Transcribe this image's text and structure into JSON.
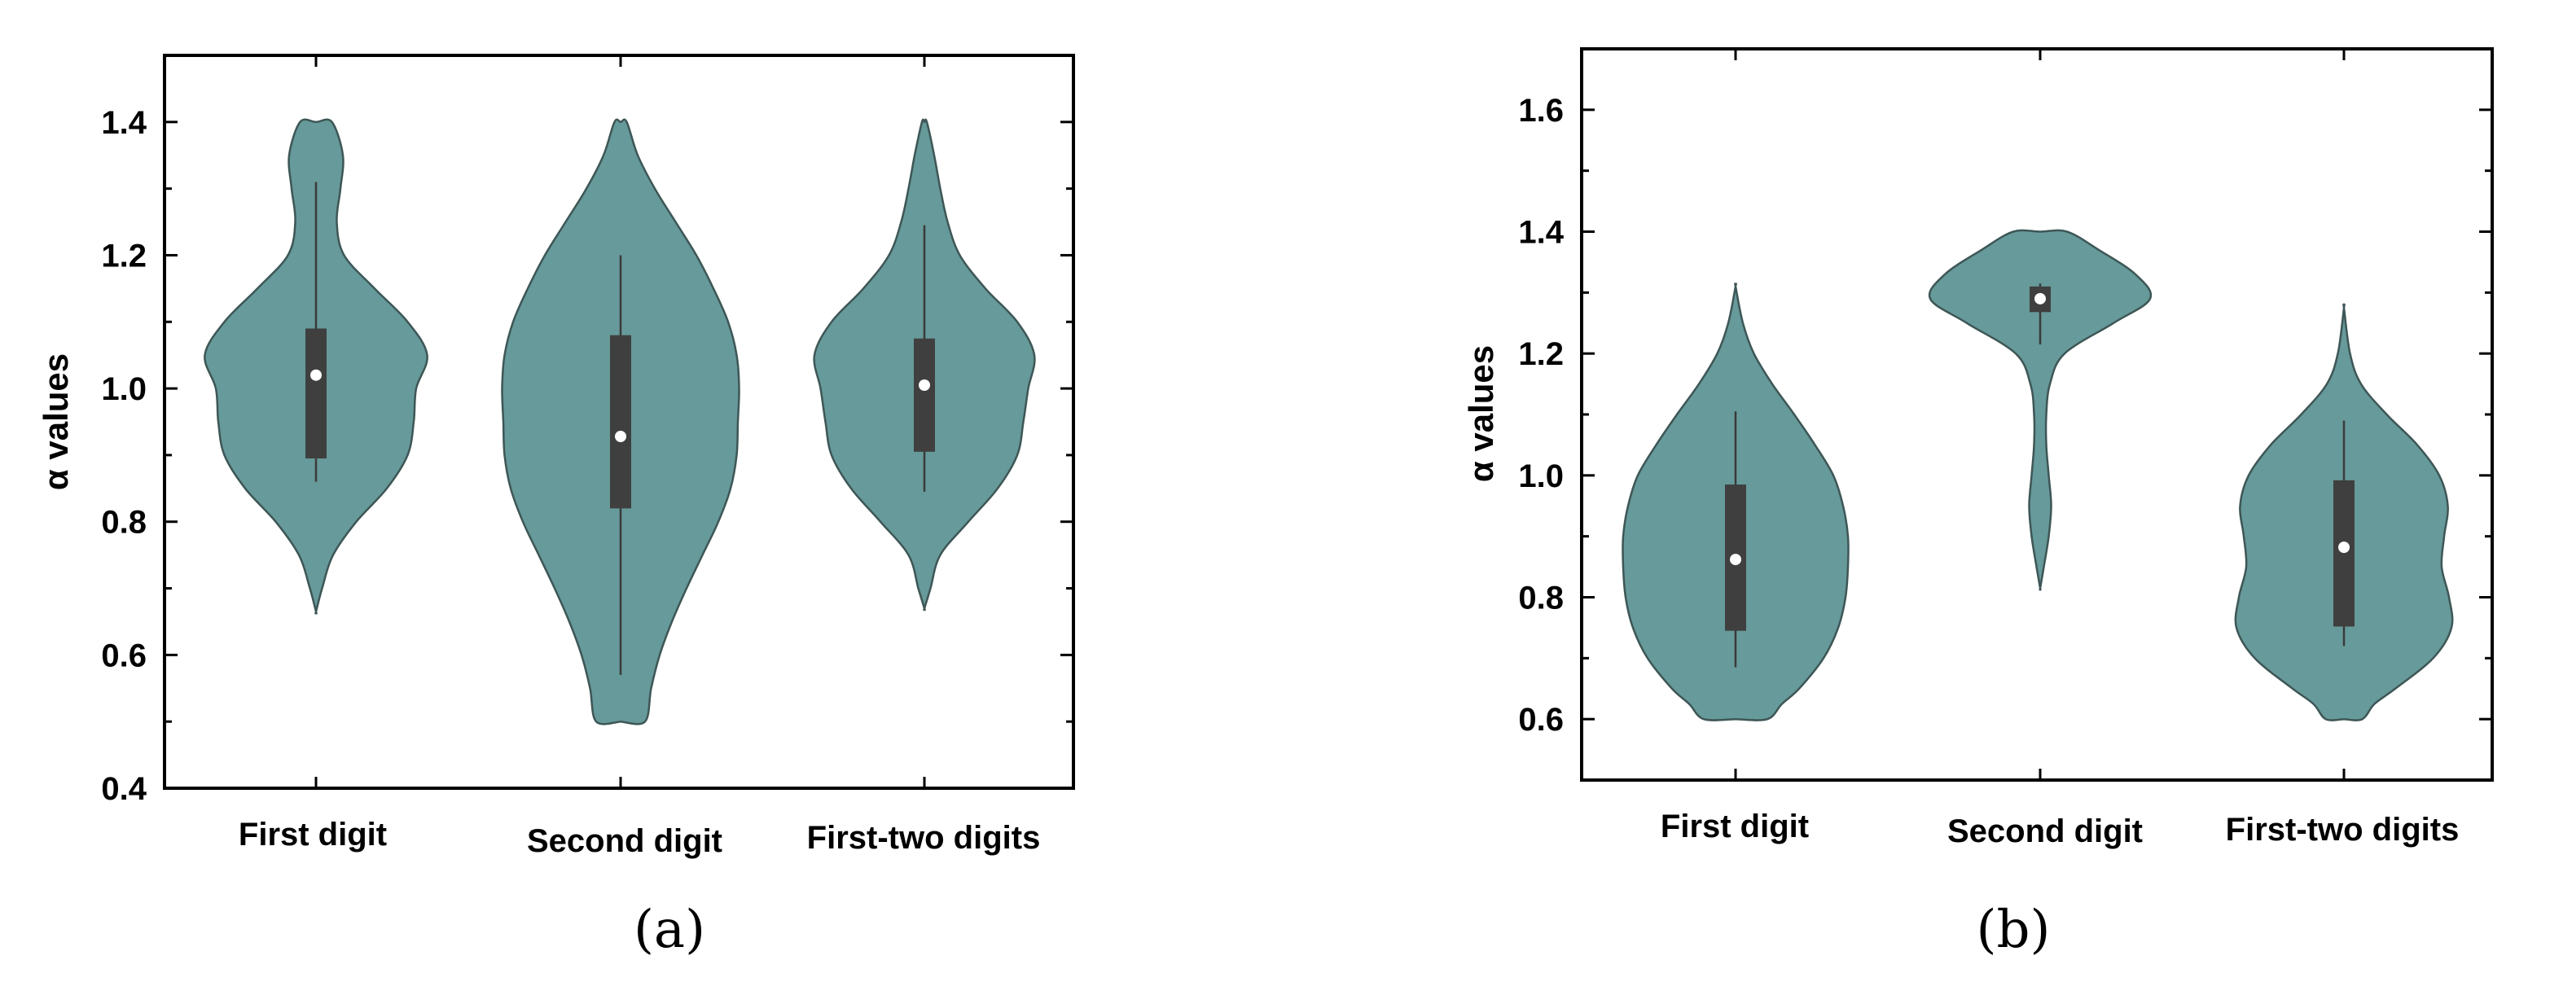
{
  "figure": {
    "violin_color": "#679a9a",
    "box_color": "#3f3f3f",
    "median_color": "#ffffff"
  },
  "chart_data": [
    {
      "type": "violin",
      "panel_label": "(a)",
      "title": "",
      "xlabel": "",
      "ylabel": "α values",
      "ylim": [
        0.4,
        1.5
      ],
      "yticks": [
        0.4,
        0.6,
        0.8,
        1.0,
        1.2,
        1.4
      ],
      "ytick_labels": [
        "0.4",
        "0.6",
        "0.8",
        "1.0",
        "1.2",
        "1.4"
      ],
      "categories": [
        "First digit",
        "Second digit",
        "First-two digits"
      ],
      "violins": [
        {
          "min": 0.665,
          "max": 1.4,
          "whisker_low": 0.86,
          "whisker_high": 1.31,
          "q1": 0.895,
          "q3": 1.09,
          "median": 1.02,
          "profile": [
            [
              0.665,
              0.0
            ],
            [
              0.7,
              0.05
            ],
            [
              0.75,
              0.14
            ],
            [
              0.8,
              0.33
            ],
            [
              0.85,
              0.58
            ],
            [
              0.9,
              0.75
            ],
            [
              0.95,
              0.8
            ],
            [
              1.0,
              0.82
            ],
            [
              1.05,
              0.91
            ],
            [
              1.1,
              0.75
            ],
            [
              1.15,
              0.48
            ],
            [
              1.2,
              0.23
            ],
            [
              1.25,
              0.17
            ],
            [
              1.3,
              0.2
            ],
            [
              1.35,
              0.22
            ],
            [
              1.4,
              0.13
            ]
          ]
        },
        {
          "min": 0.5,
          "max": 1.4,
          "whisker_low": 0.57,
          "whisker_high": 1.2,
          "q1": 0.82,
          "q3": 1.08,
          "median": 0.928,
          "profile": [
            [
              0.5,
              0.2
            ],
            [
              0.55,
              0.25
            ],
            [
              0.6,
              0.32
            ],
            [
              0.65,
              0.42
            ],
            [
              0.7,
              0.54
            ],
            [
              0.75,
              0.67
            ],
            [
              0.8,
              0.8
            ],
            [
              0.85,
              0.9
            ],
            [
              0.9,
              0.95
            ],
            [
              0.95,
              0.96
            ],
            [
              1.0,
              0.97
            ],
            [
              1.05,
              0.95
            ],
            [
              1.1,
              0.88
            ],
            [
              1.15,
              0.76
            ],
            [
              1.2,
              0.62
            ],
            [
              1.25,
              0.45
            ],
            [
              1.3,
              0.28
            ],
            [
              1.35,
              0.14
            ],
            [
              1.4,
              0.05
            ]
          ]
        },
        {
          "min": 0.67,
          "max": 1.4,
          "whisker_low": 0.845,
          "whisker_high": 1.245,
          "q1": 0.905,
          "q3": 1.075,
          "median": 1.005,
          "profile": [
            [
              0.67,
              0.0
            ],
            [
              0.7,
              0.05
            ],
            [
              0.75,
              0.13
            ],
            [
              0.8,
              0.36
            ],
            [
              0.85,
              0.6
            ],
            [
              0.9,
              0.76
            ],
            [
              0.95,
              0.81
            ],
            [
              1.0,
              0.85
            ],
            [
              1.05,
              0.9
            ],
            [
              1.1,
              0.76
            ],
            [
              1.15,
              0.5
            ],
            [
              1.2,
              0.29
            ],
            [
              1.25,
              0.19
            ],
            [
              1.3,
              0.13
            ],
            [
              1.35,
              0.08
            ],
            [
              1.4,
              0.02
            ]
          ]
        }
      ]
    },
    {
      "type": "violin",
      "panel_label": "(b)",
      "title": "",
      "xlabel": "",
      "ylabel": "α values",
      "ylim": [
        0.5,
        1.7
      ],
      "yticks": [
        0.6,
        0.8,
        1.0,
        1.2,
        1.4,
        1.6
      ],
      "ytick_labels": [
        "0.6",
        "0.8",
        "1.0",
        "1.2",
        "1.4",
        "1.6"
      ],
      "categories": [
        "First digit",
        "Second digit",
        "First-two digits"
      ],
      "violins": [
        {
          "min": 0.6,
          "max": 1.31,
          "whisker_low": 0.685,
          "whisker_high": 1.105,
          "q1": 0.745,
          "q3": 0.985,
          "median": 0.862,
          "profile": [
            [
              0.6,
              0.26
            ],
            [
              0.625,
              0.38
            ],
            [
              0.65,
              0.52
            ],
            [
              0.7,
              0.72
            ],
            [
              0.75,
              0.84
            ],
            [
              0.8,
              0.9
            ],
            [
              0.85,
              0.92
            ],
            [
              0.9,
              0.92
            ],
            [
              0.95,
              0.88
            ],
            [
              1.0,
              0.8
            ],
            [
              1.05,
              0.65
            ],
            [
              1.1,
              0.48
            ],
            [
              1.15,
              0.3
            ],
            [
              1.2,
              0.15
            ],
            [
              1.25,
              0.06
            ],
            [
              1.31,
              0.0
            ]
          ]
        },
        {
          "min": 0.815,
          "max": 1.4,
          "whisker_low": 1.215,
          "whisker_high": 1.315,
          "q1": 1.268,
          "q3": 1.31,
          "median": 1.29,
          "profile": [
            [
              0.815,
              0.0
            ],
            [
              0.85,
              0.03
            ],
            [
              0.9,
              0.07
            ],
            [
              0.95,
              0.09
            ],
            [
              1.0,
              0.07
            ],
            [
              1.05,
              0.05
            ],
            [
              1.1,
              0.05
            ],
            [
              1.15,
              0.08
            ],
            [
              1.2,
              0.2
            ],
            [
              1.25,
              0.6
            ],
            [
              1.29,
              0.9
            ],
            [
              1.33,
              0.78
            ],
            [
              1.37,
              0.48
            ],
            [
              1.4,
              0.22
            ]
          ]
        },
        {
          "min": 0.6,
          "max": 1.275,
          "whisker_low": 0.72,
          "whisker_high": 1.09,
          "q1": 0.752,
          "q3": 0.992,
          "median": 0.882,
          "profile": [
            [
              0.6,
              0.15
            ],
            [
              0.625,
              0.25
            ],
            [
              0.65,
              0.42
            ],
            [
              0.7,
              0.73
            ],
            [
              0.75,
              0.88
            ],
            [
              0.8,
              0.86
            ],
            [
              0.85,
              0.8
            ],
            [
              0.9,
              0.82
            ],
            [
              0.95,
              0.85
            ],
            [
              1.0,
              0.78
            ],
            [
              1.05,
              0.6
            ],
            [
              1.1,
              0.35
            ],
            [
              1.15,
              0.14
            ],
            [
              1.2,
              0.05
            ],
            [
              1.275,
              0.0
            ]
          ]
        }
      ]
    }
  ]
}
